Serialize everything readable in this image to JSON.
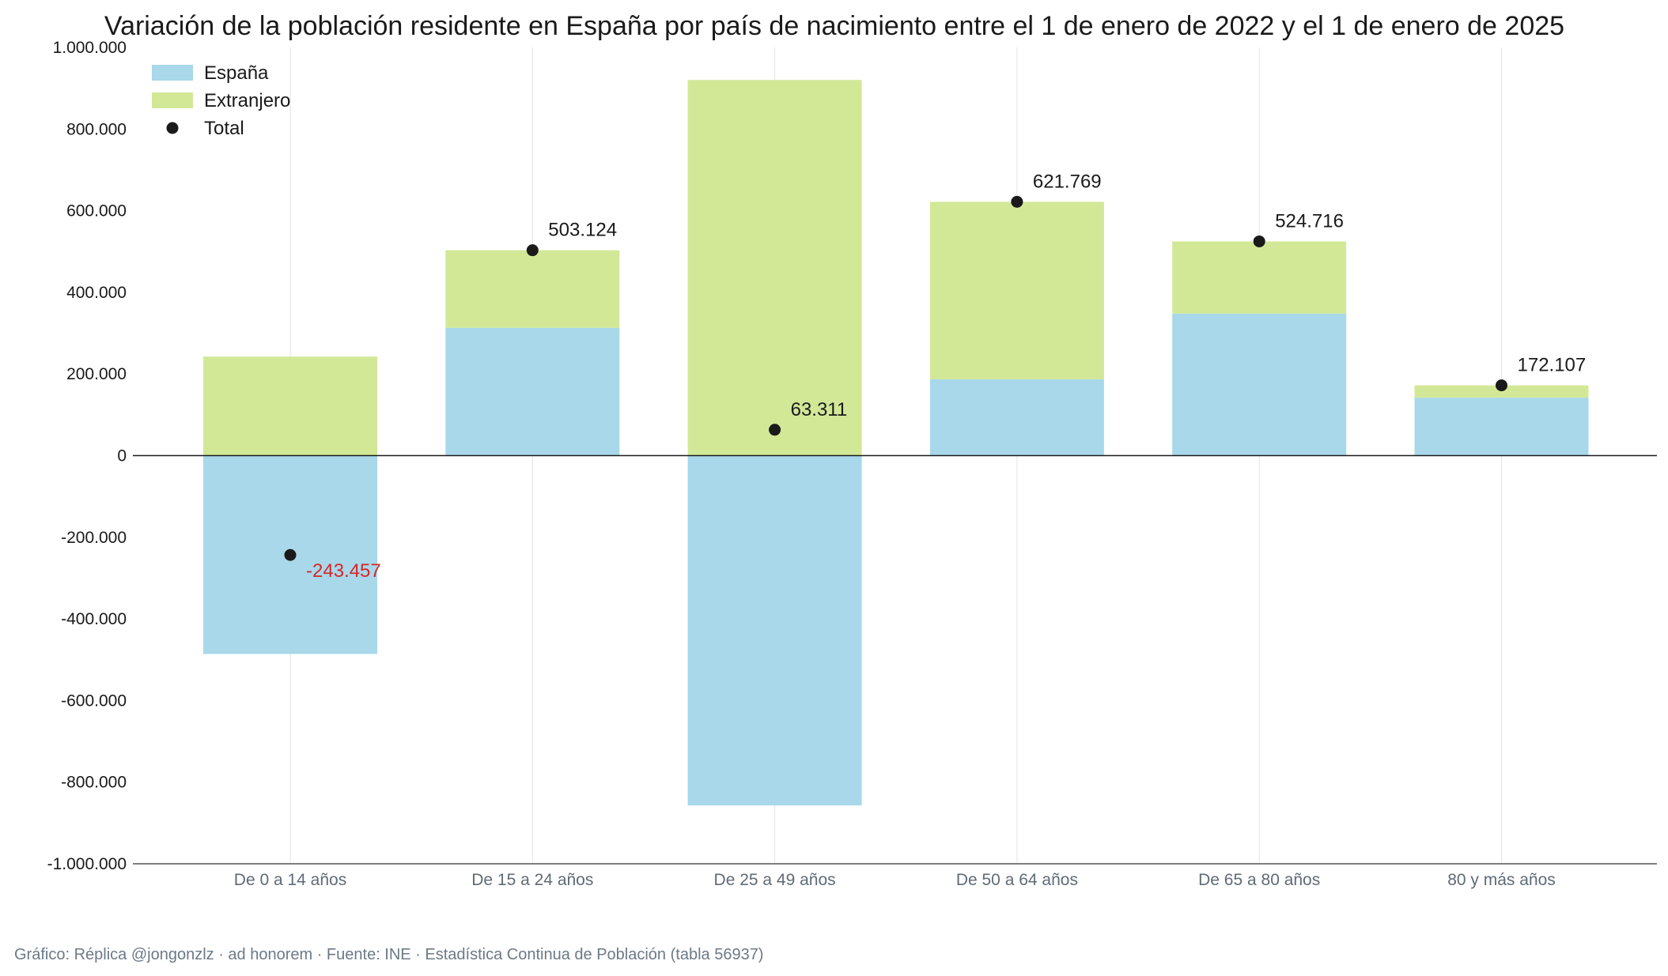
{
  "chart_data": {
    "type": "bar",
    "stacked": true,
    "title": "Variación de la población residente en España por país de nacimiento entre el 1 de enero de 2022 y el 1 de enero de 2025",
    "xlabel": "",
    "ylabel": "",
    "ylim": [
      -1000000,
      1000000
    ],
    "yticks": [
      1000000,
      800000,
      600000,
      400000,
      200000,
      0,
      -200000,
      -400000,
      -600000,
      -800000,
      -1000000
    ],
    "ytick_labels": [
      "1.000.000",
      "800.000",
      "600.000",
      "400.000",
      "200.000",
      "0",
      "-200.000",
      "-400.000",
      "-600.000",
      "-800.000",
      "-1.000.000"
    ],
    "categories": [
      "De 0 a 14 años",
      "De 15 a 24 años",
      "De 25 a 49 años",
      "De 50 a 64 años",
      "De 65 a 80 años",
      "80 y más años"
    ],
    "series": [
      {
        "name": "España",
        "color": "#a8d8ea",
        "values": [
          -486000,
          313000,
          -857000,
          187000,
          348000,
          142000
        ]
      },
      {
        "name": "Extranjero",
        "color": "#d2e897",
        "values": [
          242543,
          190124,
          920311,
          434769,
          176716,
          30107
        ]
      }
    ],
    "total": {
      "name": "Total",
      "color": "#1a1a1a",
      "values": [
        -243457,
        503124,
        63311,
        621769,
        524716,
        172107
      ],
      "labels": [
        "-243.457",
        "503.124",
        "63.311",
        "621.769",
        "524.716",
        "172.107"
      ],
      "negative_label_color": "#d62728"
    },
    "grid": {
      "vertical": true,
      "horizontal": false
    },
    "legend_position": "top-left"
  },
  "footer": {
    "credit": "Gráfico: Réplica @jongonzlz · ad honorem  ·  Fuente: INE · Estadística Continua de Población (tabla 56937)"
  }
}
